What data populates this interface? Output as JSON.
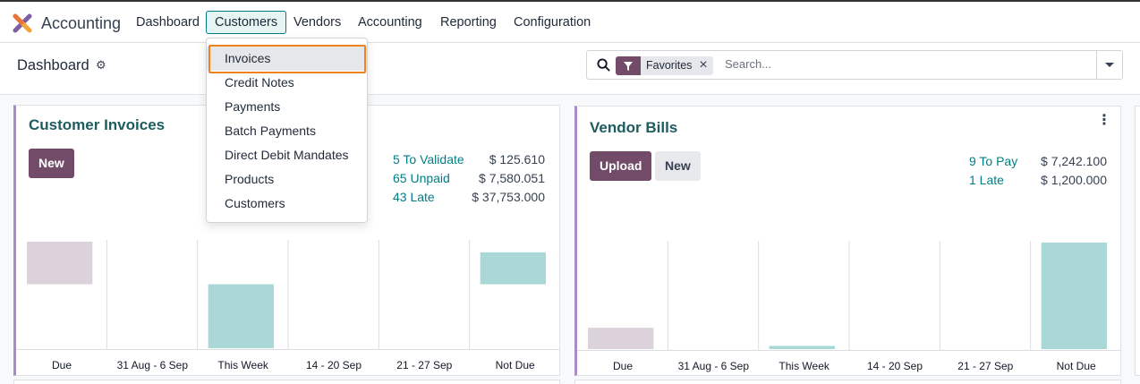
{
  "navbar": {
    "app_name": "Accounting",
    "logo_icon": "odoo-accounting-logo-icon",
    "menu": [
      "Dashboard",
      "Customers",
      "Vendors",
      "Accounting",
      "Reporting",
      "Configuration"
    ],
    "active_menu": "Customers"
  },
  "control_panel": {
    "breadcrumb": "Dashboard",
    "settings_icon": "gear-icon",
    "search": {
      "facet_icon": "filter-icon",
      "facet_label": "Favorites",
      "facet_remove": "×",
      "placeholder": "Search...",
      "value": ""
    }
  },
  "customers_menu": {
    "items": [
      "Invoices",
      "Credit Notes",
      "Payments",
      "Batch Payments",
      "Direct Debit Mandates",
      "Products",
      "Customers"
    ],
    "highlighted": "Invoices"
  },
  "customer_invoices": {
    "title": "Customer Invoices",
    "new_label": "New",
    "stats": [
      {
        "label": "5 To Validate",
        "amount": "$ 125.610"
      },
      {
        "label": "65 Unpaid",
        "amount": "$ 7,580.051"
      },
      {
        "label": "43 Late",
        "amount": "$ 37,753.000"
      }
    ],
    "chart_data": {
      "type": "bar",
      "categories": [
        "Due",
        "31 Aug - 6 Sep",
        "This Week",
        "14 - 20 Sep",
        "21 - 27 Sep",
        "Not Due"
      ],
      "bars": [
        {
          "category": "Due",
          "from": 0.6,
          "to": 1.0,
          "kind": "past"
        },
        {
          "category": "This Week",
          "from": 0.0,
          "to": 0.6,
          "kind": "future"
        },
        {
          "category": "Not Due",
          "from": 0.6,
          "to": 0.9,
          "kind": "future"
        }
      ],
      "colors": {
        "past": "#dcd2db",
        "future": "#aad8d7"
      },
      "ylim": [
        0,
        1
      ]
    }
  },
  "vendor_bills": {
    "title": "Vendor Bills",
    "upload_label": "Upload",
    "new_label": "New",
    "menu_icon": "kebab-menu-icon",
    "stats": [
      {
        "label": "9 To Pay",
        "amount": "$ 7,242.100"
      },
      {
        "label": "1 Late",
        "amount": "$ 1,200.000"
      }
    ],
    "chart_data": {
      "type": "bar",
      "categories": [
        "Due",
        "31 Aug - 6 Sep",
        "This Week",
        "14 - 20 Sep",
        "21 - 27 Sep",
        "Not Due"
      ],
      "bars": [
        {
          "category": "Due",
          "from": 0.0,
          "to": 0.2,
          "kind": "past"
        },
        {
          "category": "This Week",
          "from": 0.0,
          "to": 0.03,
          "kind": "future"
        },
        {
          "category": "Not Due",
          "from": 0.0,
          "to": 1.0,
          "kind": "future"
        }
      ],
      "colors": {
        "past": "#dcd2db",
        "future": "#aad8d7"
      },
      "ylim": [
        0,
        1
      ]
    }
  }
}
